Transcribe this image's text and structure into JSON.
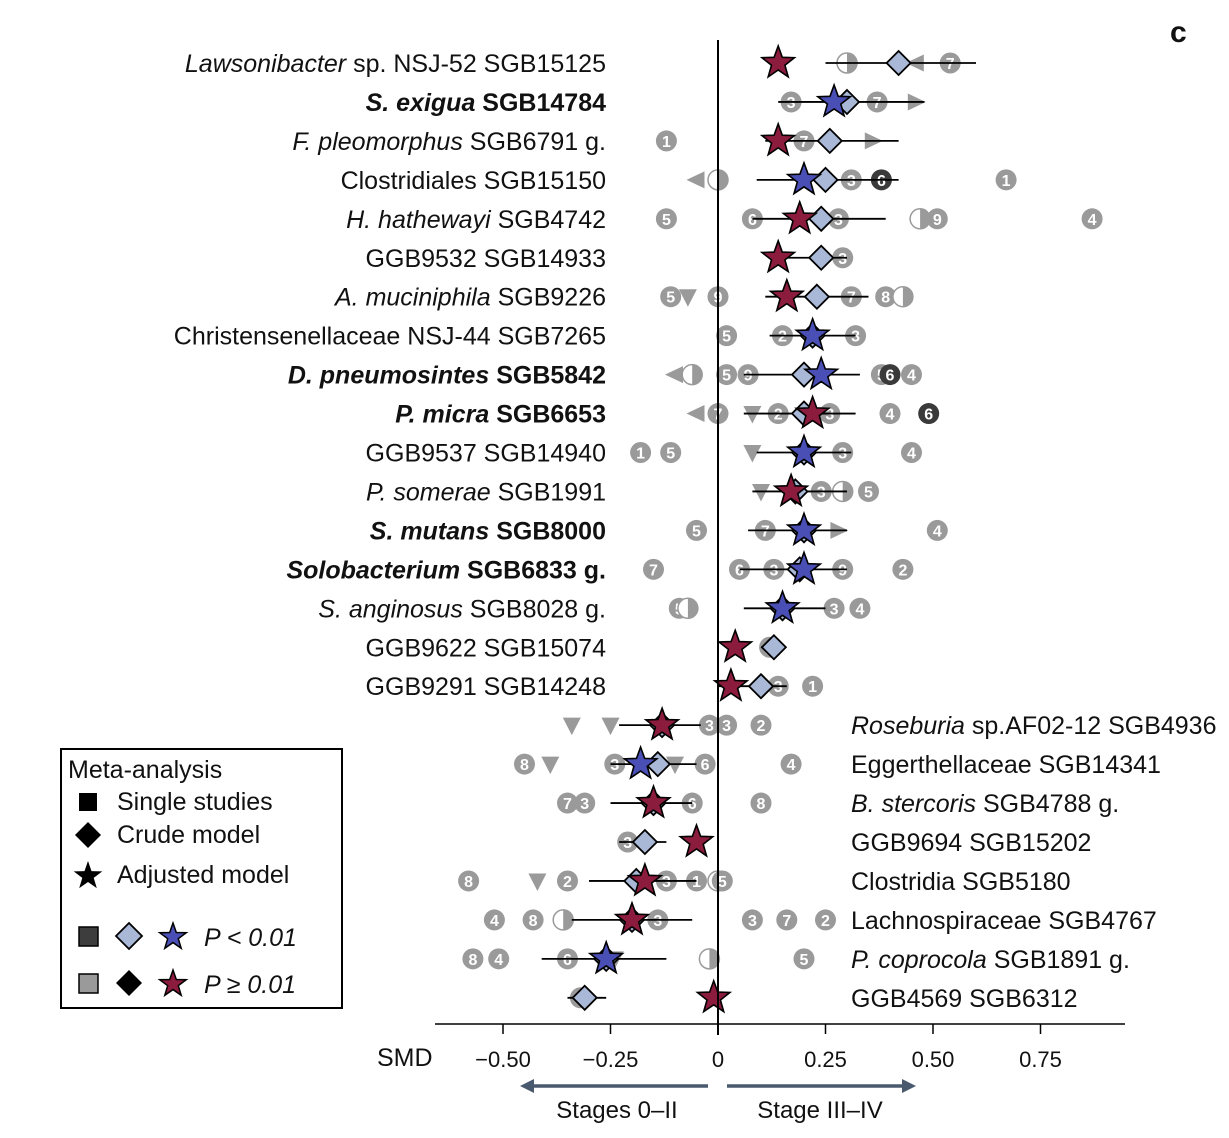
{
  "panel_label": "c",
  "legend": {
    "title": "Meta-analysis",
    "single_studies": "Single studies",
    "crude_model": "Crude model",
    "adjusted_model": "Adjusted model",
    "sig_label": "P < 0.01",
    "nonsig_label": "P ≥ 0.01"
  },
  "colors": {
    "sig_star": "#4a4fb5",
    "nonsig_star": "#8c1c3e",
    "diamond": "#a9b8d6",
    "single_study": "#9a9a9a",
    "single_study_dark": "#3a3a3a"
  },
  "chart_data": {
    "type": "forest",
    "xlabel": "SMD",
    "xlim": [
      -0.66,
      0.95
    ],
    "xticks": [
      -0.5,
      -0.25,
      0,
      0.25,
      0.5,
      0.75
    ],
    "xtick_labels": [
      "−0.50",
      "−0.25",
      "0",
      "0.25",
      "0.50",
      "0.75"
    ],
    "direction_labels": {
      "left": "Stages 0–II",
      "right": "Stage III–IV"
    },
    "rows": [
      {
        "pre": "",
        "ital": "Lawsonibacter",
        "post": " sp. NSJ-52 SGB15125",
        "bold": false,
        "side": "left",
        "crude": 0.42,
        "adjusted": 0.14,
        "ci": [
          0.25,
          0.6
        ],
        "sig": false,
        "studies": [
          {
            "x": 0.3,
            "s": "half"
          },
          {
            "x": 0.46,
            "s": "tl"
          },
          {
            "x": 0.54,
            "s": "7"
          }
        ]
      },
      {
        "pre": "",
        "ital": "S. exigua",
        "post": " SGB14784",
        "bold": true,
        "side": "left",
        "crude": 0.3,
        "adjusted": 0.27,
        "ci": [
          0.14,
          0.48
        ],
        "sig": true,
        "studies": [
          {
            "x": 0.17,
            "s": "3"
          },
          {
            "x": 0.37,
            "s": "7"
          },
          {
            "x": 0.46,
            "s": "tr"
          }
        ]
      },
      {
        "pre": "",
        "ital": "F. pleomorphus",
        "post": " SGB6791 g.",
        "bold": false,
        "side": "left",
        "crude": 0.26,
        "adjusted": 0.14,
        "ci": [
          0.11,
          0.42
        ],
        "sig": false,
        "studies": [
          {
            "x": -0.12,
            "s": "1"
          },
          {
            "x": 0.2,
            "s": "7"
          },
          {
            "x": 0.36,
            "s": "tr"
          }
        ]
      },
      {
        "pre": "",
        "ital": "",
        "post": "Clostridiales SGB15150",
        "bold": false,
        "side": "left",
        "crude": 0.25,
        "adjusted": 0.2,
        "ci": [
          0.09,
          0.42
        ],
        "sig": true,
        "studies": [
          {
            "x": -0.05,
            "s": "tl"
          },
          {
            "x": 0.0,
            "s": "half"
          },
          {
            "x": 0.31,
            "s": "3"
          },
          {
            "x": 0.38,
            "s": "6d"
          },
          {
            "x": 0.67,
            "s": "1"
          }
        ]
      },
      {
        "pre": "",
        "ital": "H. hathewayi",
        "post": " SGB4742",
        "bold": false,
        "side": "left",
        "crude": 0.24,
        "adjusted": 0.19,
        "ci": [
          0.08,
          0.39
        ],
        "sig": false,
        "studies": [
          {
            "x": -0.12,
            "s": "5"
          },
          {
            "x": 0.08,
            "s": "6"
          },
          {
            "x": 0.28,
            "s": "3"
          },
          {
            "x": 0.47,
            "s": "half"
          },
          {
            "x": 0.51,
            "s": "9"
          },
          {
            "x": 0.87,
            "s": "4"
          }
        ]
      },
      {
        "pre": "",
        "ital": "",
        "post": "GGB9532 SGB14933",
        "bold": false,
        "side": "left",
        "crude": 0.24,
        "adjusted": 0.14,
        "ci": [
          0.14,
          0.3
        ],
        "sig": false,
        "studies": [
          {
            "x": 0.29,
            "s": "3"
          }
        ]
      },
      {
        "pre": "",
        "ital": "A. muciniphila",
        "post": " SGB9226",
        "bold": false,
        "side": "left",
        "crude": 0.23,
        "adjusted": 0.16,
        "ci": [
          0.11,
          0.35
        ],
        "sig": false,
        "studies": [
          {
            "x": -0.11,
            "s": "5"
          },
          {
            "x": -0.07,
            "s": "tv"
          },
          {
            "x": 0.0,
            "s": "9"
          },
          {
            "x": 0.31,
            "s": "7"
          },
          {
            "x": 0.39,
            "s": "8"
          },
          {
            "x": 0.43,
            "s": "half"
          }
        ]
      },
      {
        "pre": "",
        "ital": "",
        "post": "Christensenellaceae NSJ-44 SGB7265",
        "bold": false,
        "side": "left",
        "crude": 0.22,
        "adjusted": 0.22,
        "ci": [
          0.12,
          0.32
        ],
        "sig": true,
        "studies": [
          {
            "x": 0.02,
            "s": "5"
          },
          {
            "x": 0.15,
            "s": "2"
          },
          {
            "x": 0.32,
            "s": "3"
          }
        ]
      },
      {
        "pre": "",
        "ital": "D. pneumosintes",
        "post": " SGB5842",
        "bold": true,
        "side": "left",
        "crude": 0.2,
        "adjusted": 0.24,
        "ci": [
          0.06,
          0.33
        ],
        "sig": true,
        "studies": [
          {
            "x": -0.1,
            "s": "tl"
          },
          {
            "x": -0.06,
            "s": "half"
          },
          {
            "x": 0.02,
            "s": "5"
          },
          {
            "x": 0.07,
            "s": "9"
          },
          {
            "x": 0.38,
            "s": "5"
          },
          {
            "x": 0.4,
            "s": "6d"
          },
          {
            "x": 0.45,
            "s": "4"
          }
        ]
      },
      {
        "pre": "",
        "ital": "P. micra",
        "post": " SGB6653",
        "bold": true,
        "side": "left",
        "crude": 0.2,
        "adjusted": 0.22,
        "ci": [
          0.06,
          0.32
        ],
        "sig": false,
        "studies": [
          {
            "x": -0.05,
            "s": "tl"
          },
          {
            "x": 0.0,
            "s": "7"
          },
          {
            "x": 0.08,
            "s": "tv"
          },
          {
            "x": 0.14,
            "s": "2"
          },
          {
            "x": 0.26,
            "s": "3"
          },
          {
            "x": 0.4,
            "s": "4"
          },
          {
            "x": 0.49,
            "s": "6d"
          }
        ]
      },
      {
        "pre": "",
        "ital": "",
        "post": "GGB9537 SGB14940",
        "bold": false,
        "side": "left",
        "crude": 0.2,
        "adjusted": 0.2,
        "ci": [
          0.09,
          0.31
        ],
        "sig": true,
        "studies": [
          {
            "x": -0.18,
            "s": "1"
          },
          {
            "x": -0.11,
            "s": "5"
          },
          {
            "x": 0.08,
            "s": "tv"
          },
          {
            "x": 0.29,
            "s": "3"
          },
          {
            "x": 0.45,
            "s": "4"
          }
        ]
      },
      {
        "pre": "",
        "ital": "P. somerae",
        "post": " SGB1991",
        "bold": false,
        "side": "left",
        "crude": 0.18,
        "adjusted": 0.17,
        "ci": [
          0.08,
          0.3
        ],
        "sig": false,
        "studies": [
          {
            "x": 0.1,
            "s": "tv"
          },
          {
            "x": 0.24,
            "s": "3"
          },
          {
            "x": 0.29,
            "s": "half"
          },
          {
            "x": 0.35,
            "s": "5"
          }
        ]
      },
      {
        "pre": "",
        "ital": "S. mutans",
        "post": " SGB8000",
        "bold": true,
        "side": "left",
        "crude": 0.2,
        "adjusted": 0.2,
        "ci": [
          0.07,
          0.3
        ],
        "sig": true,
        "studies": [
          {
            "x": -0.05,
            "s": "5"
          },
          {
            "x": 0.11,
            "s": "7"
          },
          {
            "x": 0.28,
            "s": "tr"
          },
          {
            "x": 0.51,
            "s": "4"
          }
        ]
      },
      {
        "pre": "",
        "ital": "Solobacterium",
        "post": " SGB6833 g.",
        "bold": true,
        "side": "left",
        "crude": 0.19,
        "adjusted": 0.2,
        "ci": [
          0.05,
          0.3
        ],
        "sig": true,
        "studies": [
          {
            "x": -0.15,
            "s": "7"
          },
          {
            "x": 0.05,
            "s": "6"
          },
          {
            "x": 0.13,
            "s": "3"
          },
          {
            "x": 0.29,
            "s": "9"
          },
          {
            "x": 0.43,
            "s": "2"
          }
        ]
      },
      {
        "pre": "",
        "ital": "S. anginosus",
        "post": " SGB8028 g.",
        "bold": false,
        "side": "left",
        "crude": 0.15,
        "adjusted": 0.15,
        "ci": [
          0.06,
          0.25
        ],
        "sig": true,
        "studies": [
          {
            "x": -0.09,
            "s": "5"
          },
          {
            "x": -0.07,
            "s": "half"
          },
          {
            "x": 0.27,
            "s": "3"
          },
          {
            "x": 0.33,
            "s": "4"
          }
        ]
      },
      {
        "pre": "",
        "ital": "",
        "post": "GGB9622 SGB15074",
        "bold": false,
        "side": "left",
        "crude": 0.13,
        "adjusted": 0.04,
        "ci": [
          0.1,
          0.14
        ],
        "sig": false,
        "studies": [
          {
            "x": 0.12,
            "s": "1"
          }
        ]
      },
      {
        "pre": "",
        "ital": "",
        "post": "GGB9291 SGB14248",
        "bold": false,
        "side": "left",
        "crude": 0.1,
        "adjusted": 0.03,
        "ci": [
          0.0,
          0.16
        ],
        "sig": false,
        "studies": [
          {
            "x": 0.14,
            "s": "3"
          },
          {
            "x": 0.22,
            "s": "1"
          }
        ]
      },
      {
        "pre": "",
        "ital": "Roseburia",
        "post": " sp.AF02-12 SGB4936",
        "bold": false,
        "side": "right",
        "crude": -0.13,
        "adjusted": -0.13,
        "ci": [
          -0.23,
          -0.04
        ],
        "sig": false,
        "studies": [
          {
            "x": -0.34,
            "s": "tv"
          },
          {
            "x": -0.25,
            "s": "tv"
          },
          {
            "x": -0.02,
            "s": "3"
          },
          {
            "x": 0.02,
            "s": "3"
          },
          {
            "x": 0.1,
            "s": "2"
          }
        ]
      },
      {
        "pre": "",
        "ital": "",
        "post": "Eggerthellaceae SGB14341",
        "bold": false,
        "side": "right",
        "crude": -0.14,
        "adjusted": -0.18,
        "ci": [
          -0.25,
          -0.05
        ],
        "sig": true,
        "studies": [
          {
            "x": -0.45,
            "s": "8"
          },
          {
            "x": -0.39,
            "s": "tv"
          },
          {
            "x": -0.24,
            "s": "3"
          },
          {
            "x": -0.1,
            "s": "tv"
          },
          {
            "x": -0.03,
            "s": "6"
          },
          {
            "x": 0.17,
            "s": "4"
          }
        ]
      },
      {
        "pre": "",
        "ital": "B. stercoris",
        "post": " SGB4788 g.",
        "bold": false,
        "side": "right",
        "crude": -0.15,
        "adjusted": -0.15,
        "ci": [
          -0.25,
          -0.06
        ],
        "sig": false,
        "studies": [
          {
            "x": -0.35,
            "s": "7"
          },
          {
            "x": -0.31,
            "s": "3"
          },
          {
            "x": -0.06,
            "s": "6"
          },
          {
            "x": 0.1,
            "s": "8"
          }
        ]
      },
      {
        "pre": "",
        "ital": "",
        "post": "GGB9694 SGB15202",
        "bold": false,
        "side": "right",
        "crude": -0.17,
        "adjusted": -0.05,
        "ci": [
          -0.23,
          -0.12
        ],
        "sig": false,
        "studies": [
          {
            "x": -0.21,
            "s": "3"
          }
        ]
      },
      {
        "pre": "",
        "ital": "",
        "post": "Clostridia SGB5180",
        "bold": false,
        "side": "right",
        "crude": -0.19,
        "adjusted": -0.17,
        "ci": [
          -0.3,
          -0.05
        ],
        "sig": false,
        "studies": [
          {
            "x": -0.58,
            "s": "8"
          },
          {
            "x": -0.42,
            "s": "tv"
          },
          {
            "x": -0.35,
            "s": "2"
          },
          {
            "x": -0.12,
            "s": "3"
          },
          {
            "x": -0.05,
            "s": "1"
          },
          {
            "x": 0.0,
            "s": "half"
          },
          {
            "x": 0.01,
            "s": "5"
          }
        ]
      },
      {
        "pre": "",
        "ital": "",
        "post": "Lachnospiraceae SGB4767",
        "bold": false,
        "side": "right",
        "crude": -0.2,
        "adjusted": -0.2,
        "ci": [
          -0.34,
          -0.06
        ],
        "sig": false,
        "studies": [
          {
            "x": -0.52,
            "s": "4"
          },
          {
            "x": -0.43,
            "s": "8"
          },
          {
            "x": -0.36,
            "s": "half"
          },
          {
            "x": -0.14,
            "s": "3"
          },
          {
            "x": 0.08,
            "s": "3"
          },
          {
            "x": 0.16,
            "s": "7"
          },
          {
            "x": 0.25,
            "s": "2"
          }
        ]
      },
      {
        "pre": "",
        "ital": "P. coprocola",
        "post": " SGB1891 g.",
        "bold": false,
        "side": "right",
        "crude": -0.26,
        "adjusted": -0.26,
        "ci": [
          -0.41,
          -0.12
        ],
        "sig": true,
        "studies": [
          {
            "x": -0.57,
            "s": "8"
          },
          {
            "x": -0.51,
            "s": "4"
          },
          {
            "x": -0.35,
            "s": "6"
          },
          {
            "x": -0.24,
            "s": "tv"
          },
          {
            "x": -0.02,
            "s": "half"
          },
          {
            "x": 0.2,
            "s": "5"
          }
        ]
      },
      {
        "pre": "",
        "ital": "",
        "post": "GGB4569 SGB6312",
        "bold": false,
        "side": "right",
        "crude": -0.31,
        "adjusted": -0.01,
        "ci": [
          -0.35,
          -0.26
        ],
        "sig": false,
        "studies": [
          {
            "x": -0.32,
            "s": "3"
          }
        ]
      }
    ]
  }
}
